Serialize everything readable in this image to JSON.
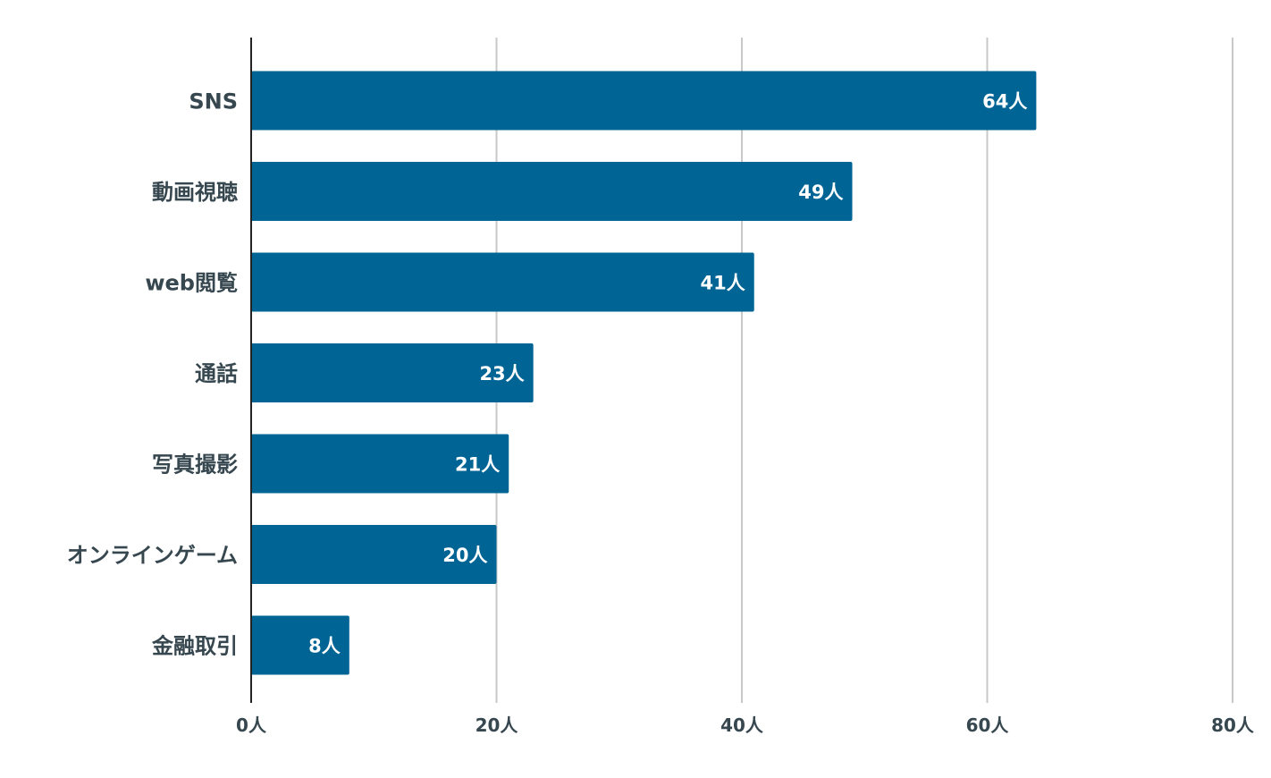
{
  "chart_data": {
    "type": "bar",
    "orientation": "horizontal",
    "categories": [
      "SNS",
      "動画視聴",
      "web閲覧",
      "通話",
      "写真撮影",
      "オンラインゲーム",
      "金融取引"
    ],
    "values": [
      64,
      49,
      41,
      23,
      21,
      20,
      8
    ],
    "value_labels": [
      "64人",
      "49人",
      "41人",
      "23人",
      "21人",
      "20人",
      "8人"
    ],
    "unit": "人",
    "xlim": [
      0,
      80
    ],
    "x_ticks": [
      0,
      20,
      40,
      60,
      80
    ],
    "x_tick_labels": [
      "0人",
      "20人",
      "40人",
      "60人",
      "80人"
    ],
    "grid": true,
    "legend": "none",
    "title": "",
    "xlabel": "",
    "ylabel": "",
    "bar_color": "#006494"
  }
}
